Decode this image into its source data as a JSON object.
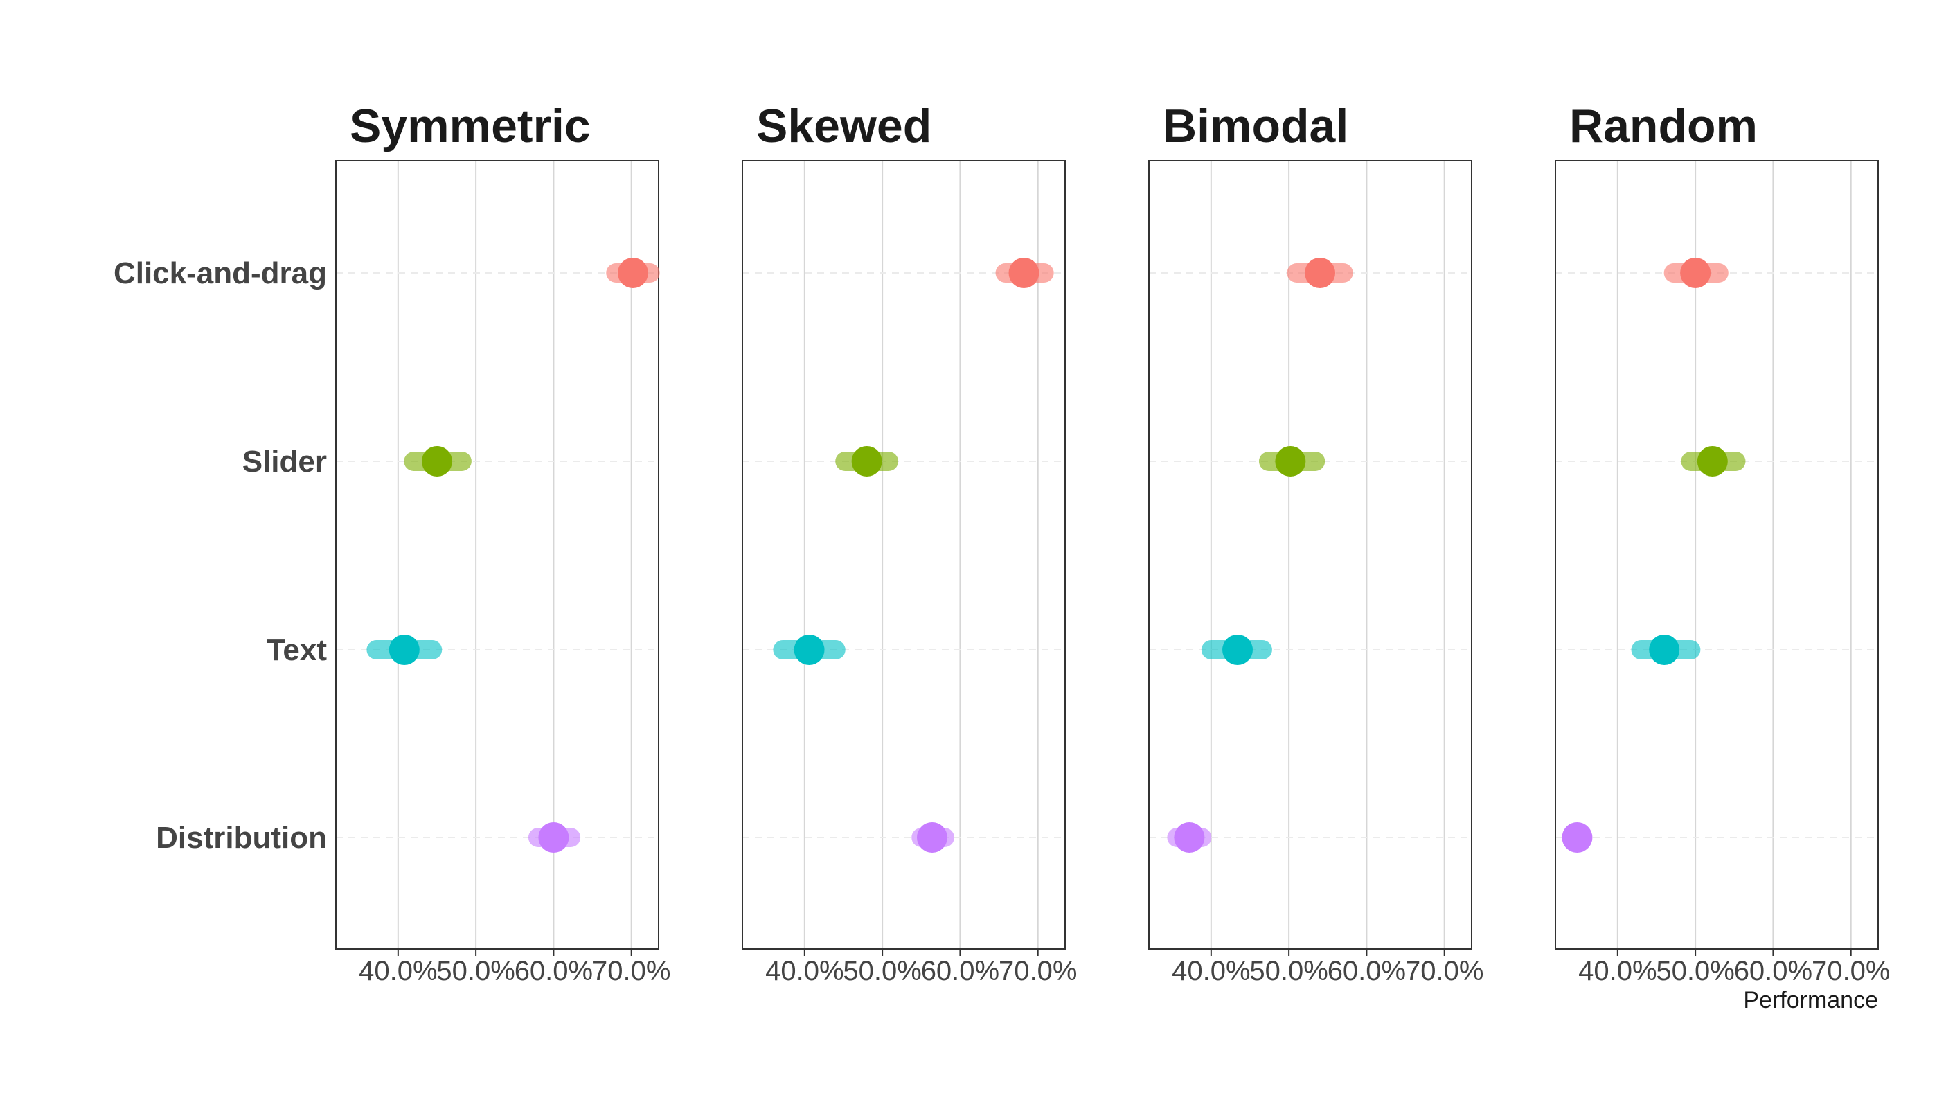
{
  "chart_data": {
    "type": "scatter",
    "xlabel": "Performance",
    "ylabel": "",
    "xlim": [
      32.0,
      73.5
    ],
    "x_ticks": [
      40,
      50,
      60,
      70
    ],
    "x_tick_labels": [
      "40.0%",
      "50.0%",
      "60.0%",
      "70.0%"
    ],
    "categories": [
      "Click-and-drag",
      "Slider",
      "Text",
      "Distribution"
    ],
    "category_colors": {
      "Click-and-drag": "#F8766D",
      "Slider": "#7CAE00",
      "Text": "#00BFC4",
      "Distribution": "#C77CFF"
    },
    "grid": true,
    "legend": "none",
    "panels": [
      {
        "title": "Symmetric",
        "points": [
          {
            "category": "Click-and-drag",
            "value": 70.2,
            "range": [
              68.0,
              72.4
            ]
          },
          {
            "category": "Slider",
            "value": 45.0,
            "range": [
              42.0,
              48.2
            ]
          },
          {
            "category": "Text",
            "value": 40.8,
            "range": [
              37.2,
              44.4
            ]
          },
          {
            "category": "Distribution",
            "value": 60.0,
            "range": [
              58.0,
              62.2
            ]
          }
        ]
      },
      {
        "title": "Skewed",
        "points": [
          {
            "category": "Click-and-drag",
            "value": 68.2,
            "range": [
              65.8,
              70.8
            ]
          },
          {
            "category": "Slider",
            "value": 48.0,
            "range": [
              45.2,
              50.8
            ]
          },
          {
            "category": "Text",
            "value": 40.6,
            "range": [
              37.2,
              44.0
            ]
          },
          {
            "category": "Distribution",
            "value": 56.4,
            "range": [
              55.0,
              58.0
            ]
          }
        ]
      },
      {
        "title": "Bimodal",
        "points": [
          {
            "category": "Click-and-drag",
            "value": 54.0,
            "range": [
              51.0,
              57.0
            ]
          },
          {
            "category": "Slider",
            "value": 50.2,
            "range": [
              47.4,
              53.4
            ]
          },
          {
            "category": "Text",
            "value": 43.4,
            "range": [
              40.0,
              46.6
            ]
          },
          {
            "category": "Distribution",
            "value": 37.2,
            "range": [
              35.6,
              38.8
            ]
          }
        ]
      },
      {
        "title": "Random",
        "points": [
          {
            "category": "Click-and-drag",
            "value": 50.0,
            "range": [
              47.2,
              53.0
            ]
          },
          {
            "category": "Slider",
            "value": 52.2,
            "range": [
              49.4,
              55.2
            ]
          },
          {
            "category": "Text",
            "value": 46.0,
            "range": [
              43.0,
              49.4
            ]
          },
          {
            "category": "Distribution",
            "value": 34.8,
            "range": [
              34.8,
              34.8
            ]
          }
        ]
      }
    ]
  }
}
